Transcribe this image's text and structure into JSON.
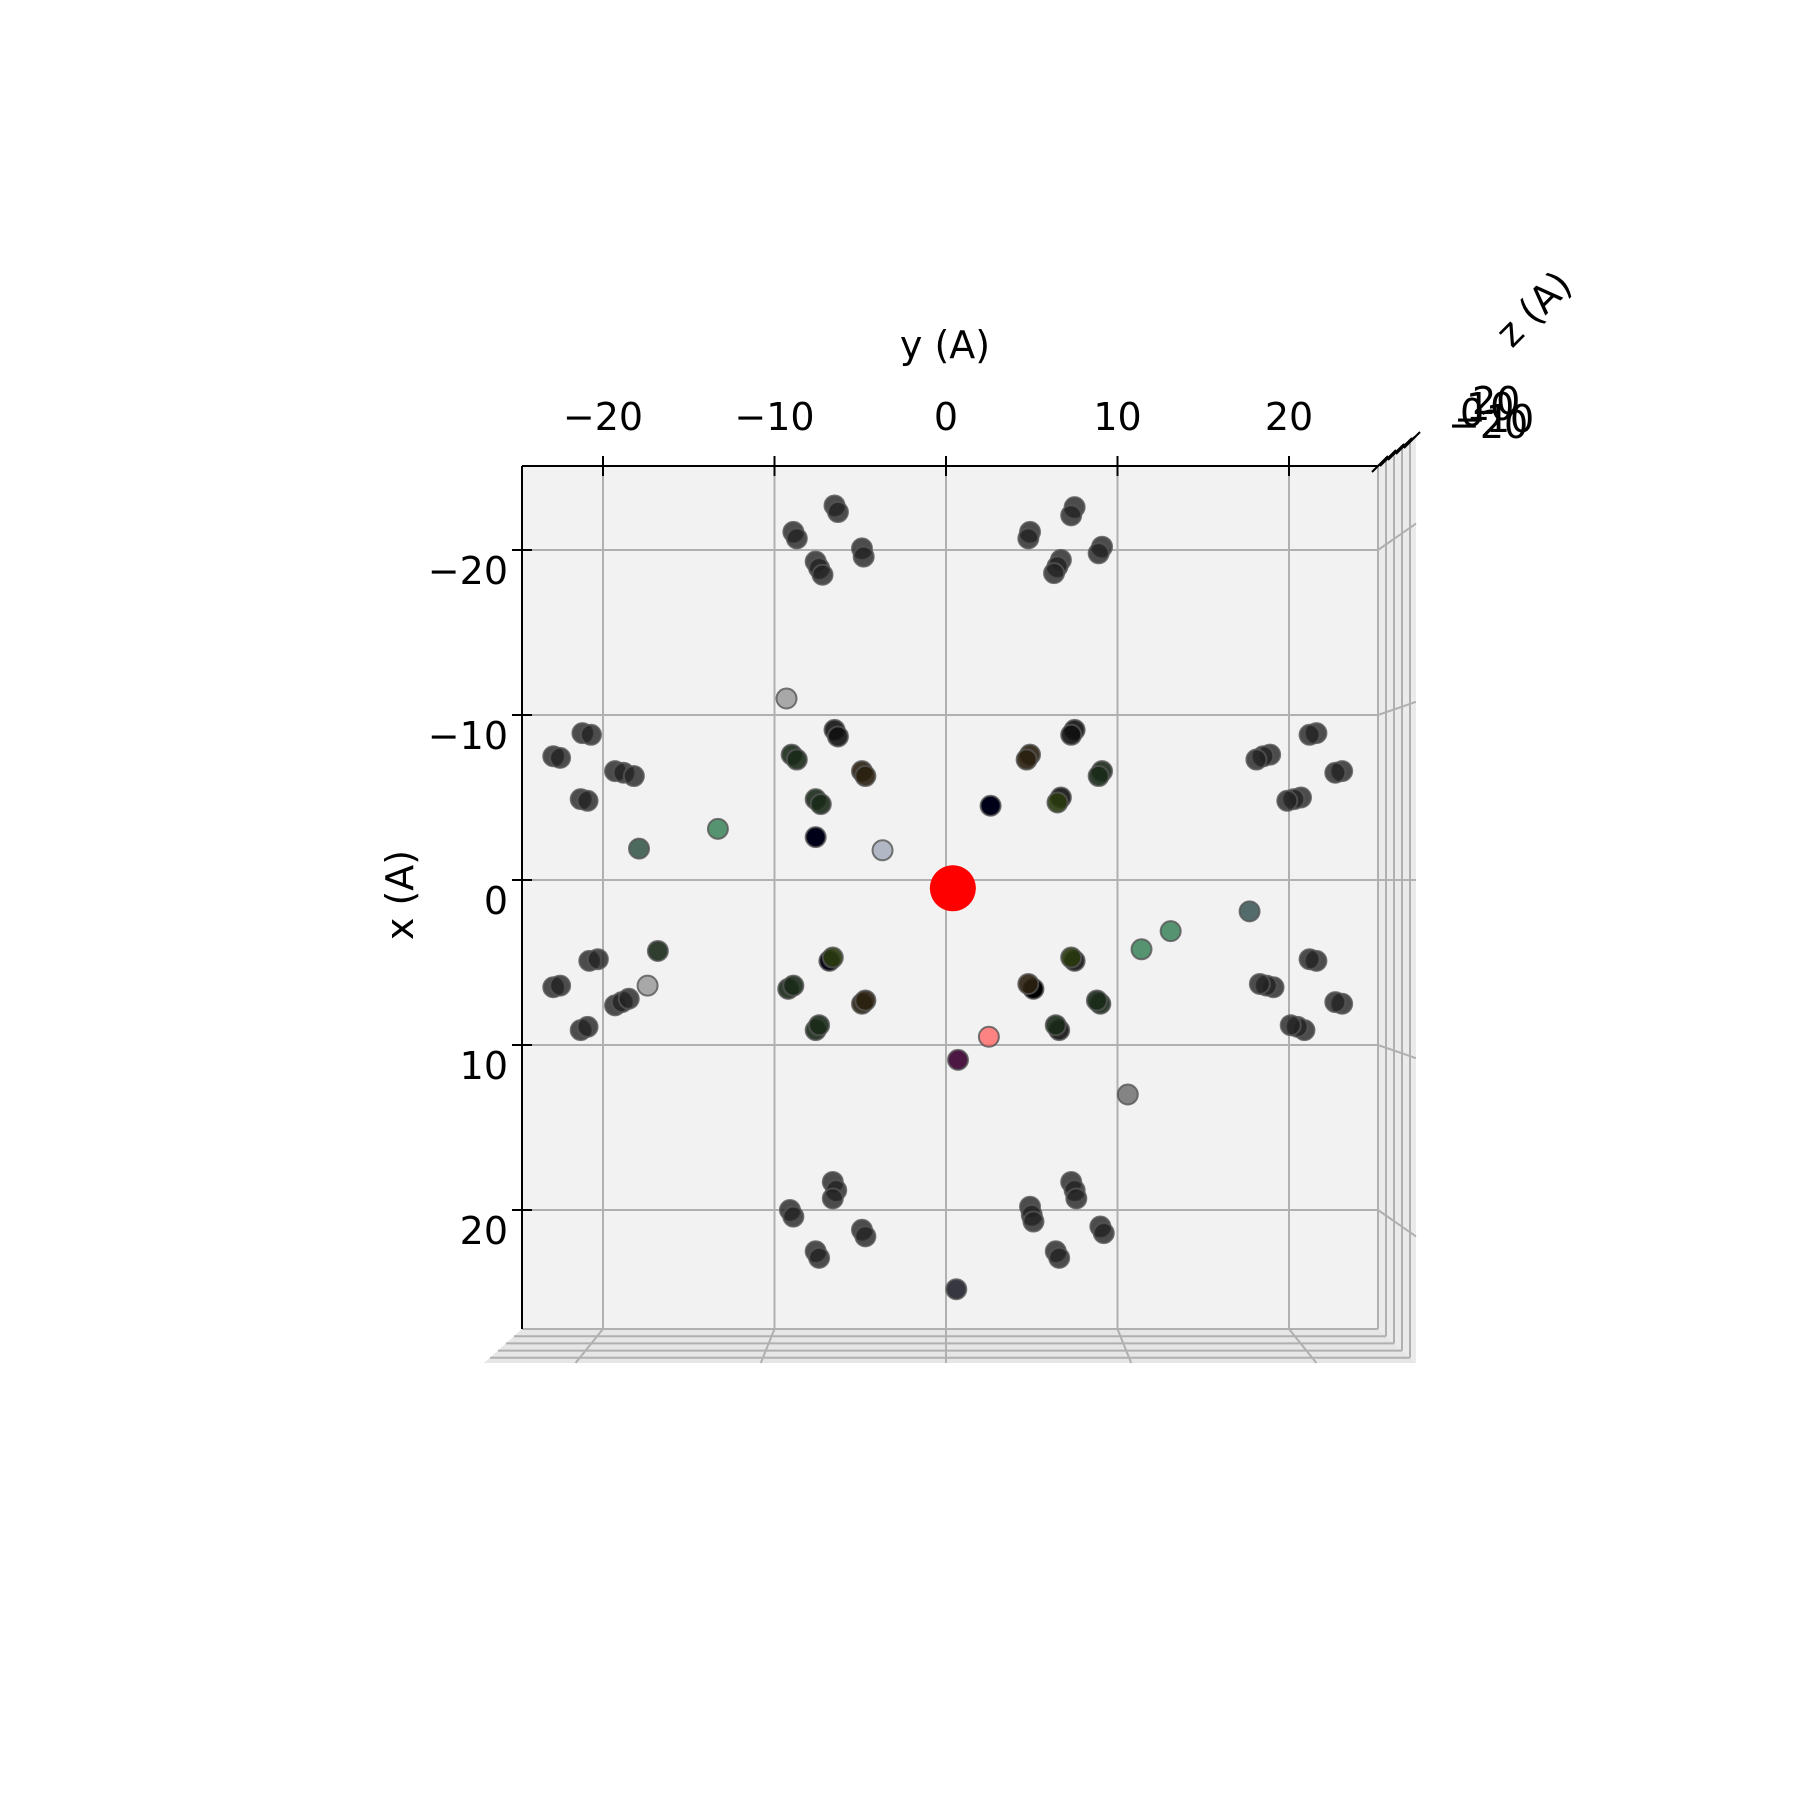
{
  "chart_data": {
    "type": "scatter",
    "projection": "3d-top-view",
    "title": "",
    "xlabel": "y (A)",
    "ylabel": "x (A)",
    "zlabel": "z (A)",
    "xlim": [
      -25,
      25
    ],
    "ylim": [
      27.5,
      -25
    ],
    "x_ticks": [
      -20,
      -10,
      0,
      10,
      20
    ],
    "x_tick_labels": [
      "−20",
      "−10",
      "0",
      "10",
      "20"
    ],
    "y_ticks": [
      -20,
      -10,
      0,
      10,
      20
    ],
    "y_tick_labels": [
      "−20",
      "−10",
      "0",
      "10",
      "20"
    ],
    "z_tick_labels": [
      "−20",
      "−10",
      "0",
      "10",
      "20"
    ],
    "grid": true,
    "colors": {
      "pane": "#f2f2f2",
      "grid": "#b0b0b0",
      "atom": "#111111",
      "highlight": "#ff0000"
    },
    "highlight_point": {
      "y": 0.4,
      "x": 0.5,
      "color": "#ff0000"
    },
    "series": [
      {
        "values": [
          {
            "y": -6.5,
            "x": -22.7,
            "c": "#222222",
            "o": 0.8
          },
          {
            "y": -6.3,
            "x": -22.3,
            "c": "#222222",
            "o": 0.8
          },
          {
            "y": -8.9,
            "x": -21.1,
            "c": "#222222",
            "o": 0.8
          },
          {
            "y": -8.7,
            "x": -20.7,
            "c": "#222222",
            "o": 0.8
          },
          {
            "y": -4.9,
            "x": -20.1,
            "c": "#222222",
            "o": 0.8
          },
          {
            "y": -4.8,
            "x": -19.6,
            "c": "#222222",
            "o": 0.8
          },
          {
            "y": -7.6,
            "x": -19.3,
            "c": "#222222",
            "o": 0.8
          },
          {
            "y": -7.4,
            "x": -18.9,
            "c": "#222222",
            "o": 0.8
          },
          {
            "y": -7.2,
            "x": -18.5,
            "c": "#222222",
            "o": 0.8
          },
          {
            "y": 7.5,
            "x": -22.6,
            "c": "#222222",
            "o": 0.8
          },
          {
            "y": 7.3,
            "x": -22.1,
            "c": "#222222",
            "o": 0.8
          },
          {
            "y": 4.9,
            "x": -21.1,
            "c": "#222222",
            "o": 0.8
          },
          {
            "y": 4.8,
            "x": -20.7,
            "c": "#222222",
            "o": 0.8
          },
          {
            "y": 9.1,
            "x": -20.2,
            "c": "#222222",
            "o": 0.8
          },
          {
            "y": 8.9,
            "x": -19.8,
            "c": "#222222",
            "o": 0.8
          },
          {
            "y": 6.7,
            "x": -19.4,
            "c": "#222222",
            "o": 0.8
          },
          {
            "y": 6.5,
            "x": -19.0,
            "c": "#222222",
            "o": 0.8
          },
          {
            "y": 6.3,
            "x": -18.6,
            "c": "#222222",
            "o": 0.8
          },
          {
            "y": -9.3,
            "x": -11.0,
            "c": "#777777",
            "o": 0.6
          },
          {
            "y": -21.2,
            "x": -8.9,
            "c": "#222222",
            "o": 0.8
          },
          {
            "y": -20.7,
            "x": -8.8,
            "c": "#222222",
            "o": 0.8
          },
          {
            "y": -22.9,
            "x": -7.5,
            "c": "#222222",
            "o": 0.8
          },
          {
            "y": -22.5,
            "x": -7.4,
            "c": "#222222",
            "o": 0.8
          },
          {
            "y": -19.3,
            "x": -6.6,
            "c": "#222222",
            "o": 0.8
          },
          {
            "y": -18.8,
            "x": -6.5,
            "c": "#222222",
            "o": 0.8
          },
          {
            "y": -18.2,
            "x": -6.3,
            "c": "#222222",
            "o": 0.8
          },
          {
            "y": -21.3,
            "x": -4.9,
            "c": "#222222",
            "o": 0.8
          },
          {
            "y": -20.9,
            "x": -4.8,
            "c": "#222222",
            "o": 0.8
          },
          {
            "y": -13.3,
            "x": -3.1,
            "c": "#2e7a4f",
            "o": 0.8
          },
          {
            "y": -17.9,
            "x": -1.9,
            "c": "#23473a",
            "o": 0.8
          },
          {
            "y": -6.5,
            "x": -9.1,
            "c": "#111111",
            "o": 0.9
          },
          {
            "y": -6.3,
            "x": -8.7,
            "c": "#111111",
            "o": 0.9
          },
          {
            "y": -9.0,
            "x": -7.6,
            "c": "#1a2a1a",
            "o": 0.9
          },
          {
            "y": -8.7,
            "x": -7.3,
            "c": "#1a2a1a",
            "o": 0.9
          },
          {
            "y": -4.9,
            "x": -6.6,
            "c": "#2a2010",
            "o": 0.9
          },
          {
            "y": -4.7,
            "x": -6.3,
            "c": "#2a2010",
            "o": 0.9
          },
          {
            "y": -7.6,
            "x": -4.9,
            "c": "#1a2a1a",
            "o": 0.9
          },
          {
            "y": -7.3,
            "x": -4.6,
            "c": "#1a2a1a",
            "o": 0.9
          },
          {
            "y": -7.6,
            "x": -2.6,
            "c": "#000018",
            "o": 1.0
          },
          {
            "y": -3.7,
            "x": -1.8,
            "c": "#a0a8b8",
            "o": 0.8
          },
          {
            "y": 7.5,
            "x": -9.1,
            "c": "#111111",
            "o": 0.9
          },
          {
            "y": 7.3,
            "x": -8.8,
            "c": "#111111",
            "o": 0.9
          },
          {
            "y": 4.9,
            "x": -7.6,
            "c": "#2a2010",
            "o": 0.9
          },
          {
            "y": 4.7,
            "x": -7.3,
            "c": "#2a2010",
            "o": 0.9
          },
          {
            "y": 9.1,
            "x": -6.6,
            "c": "#1a2a1a",
            "o": 0.9
          },
          {
            "y": 8.9,
            "x": -6.3,
            "c": "#1a2a1a",
            "o": 0.9
          },
          {
            "y": 6.7,
            "x": -5.0,
            "c": "#111111",
            "o": 0.9
          },
          {
            "y": 6.5,
            "x": -4.7,
            "c": "#2a3a10",
            "o": 0.9
          },
          {
            "y": 2.6,
            "x": -4.5,
            "c": "#000018",
            "o": 1.0
          },
          {
            "y": 21.6,
            "x": -8.9,
            "c": "#222222",
            "o": 0.8
          },
          {
            "y": 21.2,
            "x": -8.8,
            "c": "#222222",
            "o": 0.8
          },
          {
            "y": 18.9,
            "x": -7.6,
            "c": "#222222",
            "o": 0.8
          },
          {
            "y": 18.5,
            "x": -7.5,
            "c": "#222222",
            "o": 0.8
          },
          {
            "y": 18.1,
            "x": -7.3,
            "c": "#222222",
            "o": 0.8
          },
          {
            "y": 23.1,
            "x": -6.6,
            "c": "#222222",
            "o": 0.8
          },
          {
            "y": 22.7,
            "x": -6.5,
            "c": "#222222",
            "o": 0.8
          },
          {
            "y": 20.7,
            "x": -5.0,
            "c": "#222222",
            "o": 0.8
          },
          {
            "y": 20.3,
            "x": -4.9,
            "c": "#222222",
            "o": 0.8
          },
          {
            "y": 19.9,
            "x": -4.8,
            "c": "#222222",
            "o": 0.8
          },
          {
            "y": 17.7,
            "x": 1.9,
            "c": "#2a4a48",
            "o": 0.8
          },
          {
            "y": 13.1,
            "x": 3.1,
            "c": "#2e7a4f",
            "o": 0.8
          },
          {
            "y": 11.4,
            "x": 4.2,
            "c": "#2e7a4f",
            "o": 0.8
          },
          {
            "y": -16.8,
            "x": 4.3,
            "c": "#1a2a1a",
            "o": 0.9
          },
          {
            "y": -20.8,
            "x": 4.9,
            "c": "#222222",
            "o": 0.8
          },
          {
            "y": -20.3,
            "x": 4.8,
            "c": "#222222",
            "o": 0.8
          },
          {
            "y": -17.4,
            "x": 6.4,
            "c": "#777777",
            "o": 0.6
          },
          {
            "y": -22.9,
            "x": 6.5,
            "c": "#222222",
            "o": 0.8
          },
          {
            "y": -22.5,
            "x": 6.4,
            "c": "#222222",
            "o": 0.8
          },
          {
            "y": -19.3,
            "x": 7.6,
            "c": "#222222",
            "o": 0.8
          },
          {
            "y": -18.9,
            "x": 7.4,
            "c": "#222222",
            "o": 0.8
          },
          {
            "y": -18.5,
            "x": 7.2,
            "c": "#222222",
            "o": 0.8
          },
          {
            "y": -21.3,
            "x": 9.1,
            "c": "#222222",
            "o": 0.8
          },
          {
            "y": -20.9,
            "x": 8.9,
            "c": "#222222",
            "o": 0.8
          },
          {
            "y": -6.8,
            "x": 4.9,
            "c": "#0a0a1a",
            "o": 1.0
          },
          {
            "y": -6.6,
            "x": 4.7,
            "c": "#2a3a10",
            "o": 0.9
          },
          {
            "y": -9.2,
            "x": 6.6,
            "c": "#1a2a1a",
            "o": 0.9
          },
          {
            "y": -8.9,
            "x": 6.4,
            "c": "#1a2a1a",
            "o": 0.9
          },
          {
            "y": -4.9,
            "x": 7.5,
            "c": "#2a2010",
            "o": 0.9
          },
          {
            "y": -4.7,
            "x": 7.3,
            "c": "#2a2010",
            "o": 0.9
          },
          {
            "y": -7.6,
            "x": 9.1,
            "c": "#1a2a1a",
            "o": 0.9
          },
          {
            "y": -7.4,
            "x": 8.8,
            "c": "#1a2a1a",
            "o": 0.9
          },
          {
            "y": 7.5,
            "x": 4.9,
            "c": "#111111",
            "o": 0.9
          },
          {
            "y": 7.3,
            "x": 4.7,
            "c": "#2a3a10",
            "o": 0.9
          },
          {
            "y": 5.1,
            "x": 6.6,
            "c": "#000000",
            "o": 1.0
          },
          {
            "y": 4.8,
            "x": 6.3,
            "c": "#2a2010",
            "o": 0.9
          },
          {
            "y": 9.0,
            "x": 7.5,
            "c": "#1a2a1a",
            "o": 0.9
          },
          {
            "y": 8.8,
            "x": 7.3,
            "c": "#1a2a1a",
            "o": 0.9
          },
          {
            "y": 6.6,
            "x": 9.1,
            "c": "#111111",
            "o": 0.9
          },
          {
            "y": 6.4,
            "x": 8.8,
            "c": "#1a2a1a",
            "o": 0.9
          },
          {
            "y": 21.6,
            "x": 4.9,
            "c": "#222222",
            "o": 0.8
          },
          {
            "y": 21.2,
            "x": 4.8,
            "c": "#222222",
            "o": 0.8
          },
          {
            "y": 19.1,
            "x": 6.5,
            "c": "#222222",
            "o": 0.8
          },
          {
            "y": 18.7,
            "x": 6.4,
            "c": "#222222",
            "o": 0.8
          },
          {
            "y": 18.3,
            "x": 6.3,
            "c": "#222222",
            "o": 0.8
          },
          {
            "y": 23.1,
            "x": 7.5,
            "c": "#222222",
            "o": 0.8
          },
          {
            "y": 22.7,
            "x": 7.4,
            "c": "#222222",
            "o": 0.8
          },
          {
            "y": 20.9,
            "x": 9.1,
            "c": "#222222",
            "o": 0.8
          },
          {
            "y": 20.5,
            "x": 8.9,
            "c": "#222222",
            "o": 0.8
          },
          {
            "y": 20.1,
            "x": 8.8,
            "c": "#222222",
            "o": 0.8
          },
          {
            "y": 2.5,
            "x": 9.5,
            "c": "#ff6666",
            "o": 0.8
          },
          {
            "y": 0.7,
            "x": 10.9,
            "c": "#3a0030",
            "o": 0.9
          },
          {
            "y": 10.6,
            "x": 13.0,
            "c": "#555555",
            "o": 0.7
          },
          {
            "y": -6.6,
            "x": 18.3,
            "c": "#222222",
            "o": 0.8
          },
          {
            "y": -6.4,
            "x": 18.8,
            "c": "#222222",
            "o": 0.8
          },
          {
            "y": -6.6,
            "x": 19.3,
            "c": "#222222",
            "o": 0.8
          },
          {
            "y": -9.1,
            "x": 20.0,
            "c": "#222222",
            "o": 0.8
          },
          {
            "y": -8.9,
            "x": 20.4,
            "c": "#222222",
            "o": 0.8
          },
          {
            "y": -4.9,
            "x": 21.2,
            "c": "#222222",
            "o": 0.8
          },
          {
            "y": -4.7,
            "x": 21.6,
            "c": "#222222",
            "o": 0.8
          },
          {
            "y": -7.6,
            "x": 22.5,
            "c": "#222222",
            "o": 0.8
          },
          {
            "y": -7.4,
            "x": 22.9,
            "c": "#222222",
            "o": 0.8
          },
          {
            "y": 7.3,
            "x": 18.3,
            "c": "#222222",
            "o": 0.8
          },
          {
            "y": 7.5,
            "x": 18.8,
            "c": "#222222",
            "o": 0.8
          },
          {
            "y": 7.6,
            "x": 19.3,
            "c": "#222222",
            "o": 0.8
          },
          {
            "y": 4.9,
            "x": 19.8,
            "c": "#222222",
            "o": 0.8
          },
          {
            "y": 5.0,
            "x": 20.3,
            "c": "#222222",
            "o": 0.8
          },
          {
            "y": 5.1,
            "x": 20.7,
            "c": "#222222",
            "o": 0.8
          },
          {
            "y": 9.0,
            "x": 21.0,
            "c": "#222222",
            "o": 0.8
          },
          {
            "y": 9.2,
            "x": 21.4,
            "c": "#222222",
            "o": 0.8
          },
          {
            "y": 6.4,
            "x": 22.5,
            "c": "#222222",
            "o": 0.8
          },
          {
            "y": 6.6,
            "x": 22.9,
            "c": "#222222",
            "o": 0.8
          },
          {
            "y": 0.6,
            "x": 24.8,
            "c": "#22222e",
            "o": 0.9
          }
        ]
      }
    ]
  }
}
